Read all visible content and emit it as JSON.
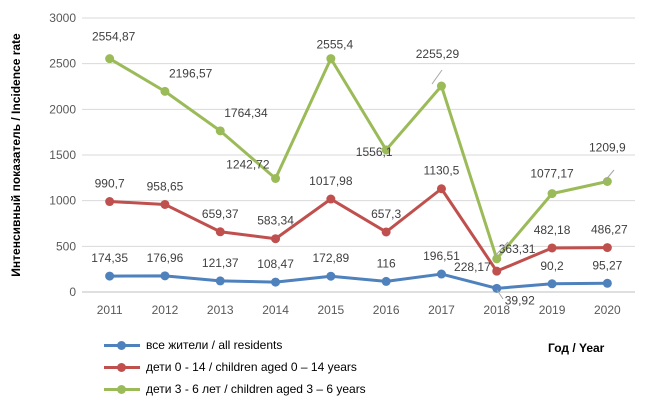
{
  "chart_data": {
    "type": "line",
    "ylabel": "Интенсивный  показатель  / Incidence rate",
    "xlabel": "Год / Year",
    "ylim": [
      0,
      3000
    ],
    "yticks": [
      "0",
      "500",
      "1000",
      "1500",
      "2000",
      "2500",
      "3000"
    ],
    "ytick_values": [
      0,
      500,
      1000,
      1500,
      2000,
      2500,
      3000
    ],
    "categories": [
      "2011",
      "2012",
      "2013",
      "2014",
      "2015",
      "2016",
      "2017",
      "2018",
      "2019",
      "2020"
    ],
    "grid": true,
    "legend_position": "bottom-left",
    "series": [
      {
        "name": "все жители / all residents",
        "color": "#4f81bd",
        "values": [
          174.35,
          176.96,
          121.37,
          108.47,
          172.89,
          116,
          196.51,
          39.92,
          90.2,
          95.27
        ],
        "labels": [
          "174,35",
          "176,96",
          "121,37",
          "108,47",
          "172,89",
          "116",
          "196,51",
          "39,92",
          "90,2",
          "95,27"
        ]
      },
      {
        "name": "дети 0 - 14 / children aged 0 – 14 years",
        "color": "#c0504d",
        "values": [
          990.7,
          958.65,
          659.37,
          583.34,
          1017.98,
          657.3,
          1130.5,
          228.17,
          482.18,
          486.27
        ],
        "labels": [
          "990,7",
          "958,65",
          "659,37",
          "583,34",
          "1017,98",
          "657,3",
          "1130,5",
          "228,17",
          "482,18",
          "486,27"
        ]
      },
      {
        "name": "дети 3 - 6 лет / children aged 3 – 6 years",
        "color": "#9bbb59",
        "values": [
          2554.87,
          2196.57,
          1764.34,
          1242.72,
          2555.4,
          1556.1,
          2255.29,
          363.31,
          1077.17,
          1209.9
        ],
        "labels": [
          "2554,87",
          "2196,57",
          "1764,34",
          "1242,72",
          "2555,4",
          "1556,1",
          "2255,29",
          "363,31",
          "1077,17",
          "1209,9"
        ]
      }
    ]
  }
}
